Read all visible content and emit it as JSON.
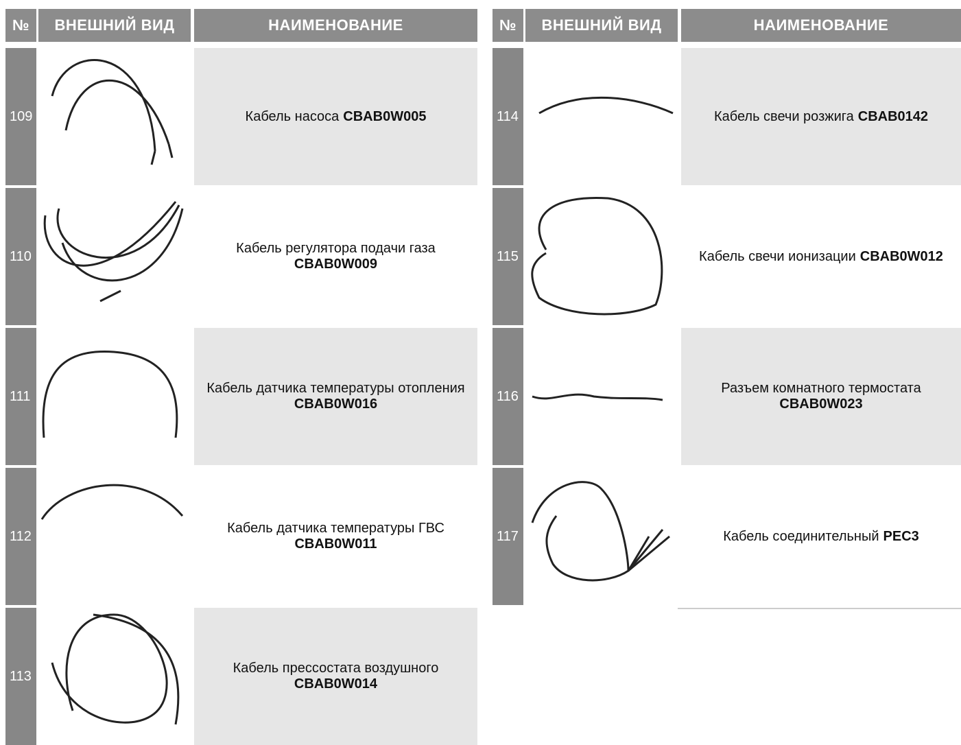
{
  "tables": [
    {
      "header": {
        "number": "№",
        "appearance": "ВНЕШНИЙ ВИД",
        "name": "НАИМЕНОВАНИЕ"
      },
      "rows": [
        {
          "number": "109",
          "name": "Кабель насоса",
          "code": "CBAB0W005"
        },
        {
          "number": "110",
          "name": "Кабель регулятора подачи газа",
          "code": "CBAB0W009"
        },
        {
          "number": "111",
          "name": "Кабель датчика температуры отопления",
          "code": "CBAB0W016"
        },
        {
          "number": "112",
          "name": "Кабель датчика температуры ГВС",
          "code": "CBAB0W011"
        },
        {
          "number": "113",
          "name": "Кабель прессостата воздушного",
          "code": "CBAB0W014"
        }
      ]
    },
    {
      "header": {
        "number": "№",
        "appearance": "ВНЕШНИЙ ВИД",
        "name": "НАИМЕНОВАНИЕ"
      },
      "rows": [
        {
          "number": "114",
          "name": "Кабель свечи розжига",
          "code": "CBAB0142"
        },
        {
          "number": "115",
          "name": "Кабель свечи ионизации",
          "code": "CBAB0W012"
        },
        {
          "number": "116",
          "name": "Разъем комнатного термостата",
          "code": "CBAB0W023"
        },
        {
          "number": "117",
          "name": "Кабель соединительный",
          "code": "PEC3"
        }
      ]
    }
  ]
}
